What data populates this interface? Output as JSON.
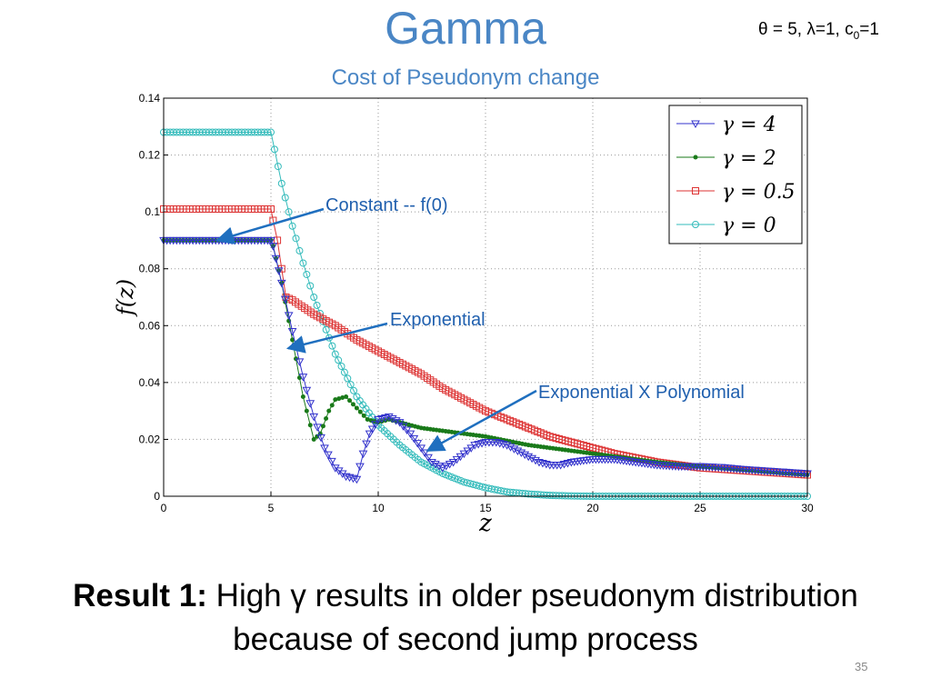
{
  "slide": {
    "title": "Gamma",
    "subtitle": "Cost of Pseudonym change",
    "params_prefix": "θ = 5, λ=1, c",
    "params_sub": "0",
    "params_suffix": "=1",
    "result_bold": "Result 1:",
    "result_line1": " High γ results in older pseudonym distribution",
    "result_line2": "because of second jump process",
    "page_number": "35"
  },
  "chart_data": {
    "type": "line",
    "xlabel": "z",
    "ylabel": "f(z)",
    "xlim": [
      0,
      30
    ],
    "ylim": [
      0,
      0.14
    ],
    "xticks": [
      0,
      5,
      10,
      15,
      20,
      25,
      30
    ],
    "yticks": [
      0,
      0.02,
      0.04,
      0.06,
      0.08,
      0.1,
      0.12,
      0.14
    ],
    "ytick_labels": [
      "0",
      "0.02",
      "0.04",
      "0.06",
      "0.08",
      "0.1",
      "0.12",
      "0.14"
    ],
    "grid": true,
    "legend_position": "top-right",
    "series": [
      {
        "name": "γ = 4",
        "color": "#3333cc",
        "marker": "triangle-down",
        "points": [
          [
            0,
            0.09
          ],
          [
            5,
            0.09
          ],
          [
            5.1,
            0.088
          ],
          [
            5.5,
            0.075
          ],
          [
            6,
            0.058
          ],
          [
            6.5,
            0.042
          ],
          [
            7,
            0.028
          ],
          [
            7.5,
            0.017
          ],
          [
            8,
            0.01
          ],
          [
            8.5,
            0.007
          ],
          [
            9,
            0.006
          ],
          [
            9.3,
            0.015
          ],
          [
            9.6,
            0.022
          ],
          [
            10,
            0.027
          ],
          [
            10.5,
            0.028
          ],
          [
            11,
            0.026
          ],
          [
            11.5,
            0.022
          ],
          [
            12,
            0.017
          ],
          [
            12.5,
            0.012
          ],
          [
            13,
            0.01
          ],
          [
            13.5,
            0.012
          ],
          [
            14,
            0.015
          ],
          [
            14.5,
            0.018
          ],
          [
            15,
            0.019
          ],
          [
            15.5,
            0.019
          ],
          [
            16,
            0.018
          ],
          [
            16.5,
            0.016
          ],
          [
            17,
            0.014
          ],
          [
            17.5,
            0.012
          ],
          [
            18,
            0.011
          ],
          [
            18.5,
            0.011
          ],
          [
            19,
            0.012
          ],
          [
            20,
            0.013
          ],
          [
            21,
            0.013
          ],
          [
            22,
            0.012
          ],
          [
            23,
            0.011
          ],
          [
            24,
            0.0105
          ],
          [
            25,
            0.0105
          ],
          [
            26,
            0.0102
          ],
          [
            27,
            0.0095
          ],
          [
            28,
            0.009
          ],
          [
            29,
            0.0085
          ],
          [
            30,
            0.008
          ]
        ]
      },
      {
        "name": "γ = 2",
        "color": "#1a7a1a",
        "marker": "dot",
        "points": [
          [
            0,
            0.09
          ],
          [
            5,
            0.09
          ],
          [
            5.1,
            0.088
          ],
          [
            5.5,
            0.075
          ],
          [
            6,
            0.055
          ],
          [
            6.5,
            0.035
          ],
          [
            7,
            0.02
          ],
          [
            7.3,
            0.022
          ],
          [
            7.7,
            0.03
          ],
          [
            8,
            0.034
          ],
          [
            8.5,
            0.035
          ],
          [
            9,
            0.031
          ],
          [
            9.5,
            0.027
          ],
          [
            10,
            0.026
          ],
          [
            10.5,
            0.027
          ],
          [
            11,
            0.026
          ],
          [
            12,
            0.024
          ],
          [
            13,
            0.023
          ],
          [
            14,
            0.022
          ],
          [
            15,
            0.021
          ],
          [
            16,
            0.0195
          ],
          [
            17,
            0.018
          ],
          [
            18,
            0.017
          ],
          [
            19,
            0.016
          ],
          [
            20,
            0.015
          ],
          [
            21,
            0.014
          ],
          [
            22,
            0.013
          ],
          [
            23,
            0.012
          ],
          [
            24,
            0.0112
          ],
          [
            25,
            0.0105
          ],
          [
            26,
            0.0098
          ],
          [
            27,
            0.0092
          ],
          [
            28,
            0.0086
          ],
          [
            29,
            0.008
          ],
          [
            30,
            0.0075
          ]
        ]
      },
      {
        "name": "γ = 0.5",
        "color": "#dd3333",
        "marker": "square",
        "points": [
          [
            0,
            0.101
          ],
          [
            5,
            0.101
          ],
          [
            5.1,
            0.097
          ],
          [
            5.3,
            0.09
          ],
          [
            5.5,
            0.08
          ],
          [
            5.7,
            0.07
          ],
          [
            6,
            0.069
          ],
          [
            7,
            0.064
          ],
          [
            8,
            0.06
          ],
          [
            9,
            0.055
          ],
          [
            10,
            0.051
          ],
          [
            11,
            0.047
          ],
          [
            12,
            0.043
          ],
          [
            13,
            0.038
          ],
          [
            14,
            0.034
          ],
          [
            15,
            0.03
          ],
          [
            16,
            0.027
          ],
          [
            17,
            0.024
          ],
          [
            18,
            0.021
          ],
          [
            19,
            0.019
          ],
          [
            20,
            0.017
          ],
          [
            21,
            0.015
          ],
          [
            22,
            0.0135
          ],
          [
            23,
            0.012
          ],
          [
            24,
            0.011
          ],
          [
            25,
            0.01
          ],
          [
            26,
            0.0095
          ],
          [
            27,
            0.009
          ],
          [
            28,
            0.0085
          ],
          [
            29,
            0.008
          ],
          [
            30,
            0.0075
          ]
        ]
      },
      {
        "name": "γ = 0",
        "color": "#33bbbb",
        "marker": "circle",
        "points": [
          [
            0,
            0.128
          ],
          [
            5,
            0.128
          ],
          [
            5.5,
            0.11
          ],
          [
            6,
            0.095
          ],
          [
            6.5,
            0.082
          ],
          [
            7,
            0.07
          ],
          [
            8,
            0.05
          ],
          [
            9,
            0.035
          ],
          [
            10,
            0.025
          ],
          [
            11,
            0.018
          ],
          [
            12,
            0.012
          ],
          [
            13,
            0.008
          ],
          [
            14,
            0.005
          ],
          [
            15,
            0.003
          ],
          [
            16,
            0.0015
          ],
          [
            17,
            0.0008
          ],
          [
            18,
            0.0003
          ],
          [
            19,
            0.0001
          ],
          [
            20,
            0.0
          ],
          [
            25,
            0.0
          ],
          [
            30,
            0.0
          ]
        ]
      }
    ],
    "annotations": [
      {
        "text": "Constant -- f(0)",
        "target": [
          2.5,
          0.09
        ]
      },
      {
        "text": "Exponential",
        "target": [
          5.8,
          0.052
        ]
      },
      {
        "text": "Exponential X Polynomial",
        "target": [
          12.3,
          0.016
        ]
      }
    ]
  }
}
